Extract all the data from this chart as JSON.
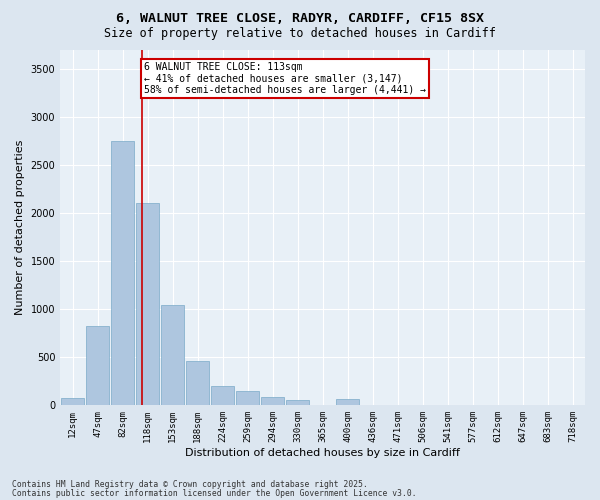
{
  "title1": "6, WALNUT TREE CLOSE, RADYR, CARDIFF, CF15 8SX",
  "title2": "Size of property relative to detached houses in Cardiff",
  "xlabel": "Distribution of detached houses by size in Cardiff",
  "ylabel": "Number of detached properties",
  "categories": [
    "12sqm",
    "47sqm",
    "82sqm",
    "118sqm",
    "153sqm",
    "188sqm",
    "224sqm",
    "259sqm",
    "294sqm",
    "330sqm",
    "365sqm",
    "400sqm",
    "436sqm",
    "471sqm",
    "506sqm",
    "541sqm",
    "577sqm",
    "612sqm",
    "647sqm",
    "683sqm",
    "718sqm"
  ],
  "values": [
    75,
    820,
    2750,
    2100,
    1040,
    460,
    200,
    145,
    80,
    50,
    0,
    65,
    0,
    0,
    0,
    0,
    0,
    0,
    0,
    0,
    0
  ],
  "bar_color": "#aec6df",
  "bar_edge_color": "#7aaac8",
  "annotation_line1": "6 WALNUT TREE CLOSE: 113sqm",
  "annotation_line2": "← 41% of detached houses are smaller (3,147)",
  "annotation_line3": "58% of semi-detached houses are larger (4,441) →",
  "annotation_box_color": "#cc0000",
  "vline_color": "#cc0000",
  "vline_x_index": 2.77,
  "ylim": [
    0,
    3700
  ],
  "yticks": [
    0,
    500,
    1000,
    1500,
    2000,
    2500,
    3000,
    3500
  ],
  "bg_color": "#dce6f0",
  "plot_bg_color": "#e8f0f7",
  "grid_color": "#ffffff",
  "footer1": "Contains HM Land Registry data © Crown copyright and database right 2025.",
  "footer2": "Contains public sector information licensed under the Open Government Licence v3.0.",
  "title_fontsize": 9.5,
  "subtitle_fontsize": 8.5,
  "tick_fontsize": 6.5,
  "label_fontsize": 8,
  "annotation_fontsize": 7,
  "footer_fontsize": 5.8
}
